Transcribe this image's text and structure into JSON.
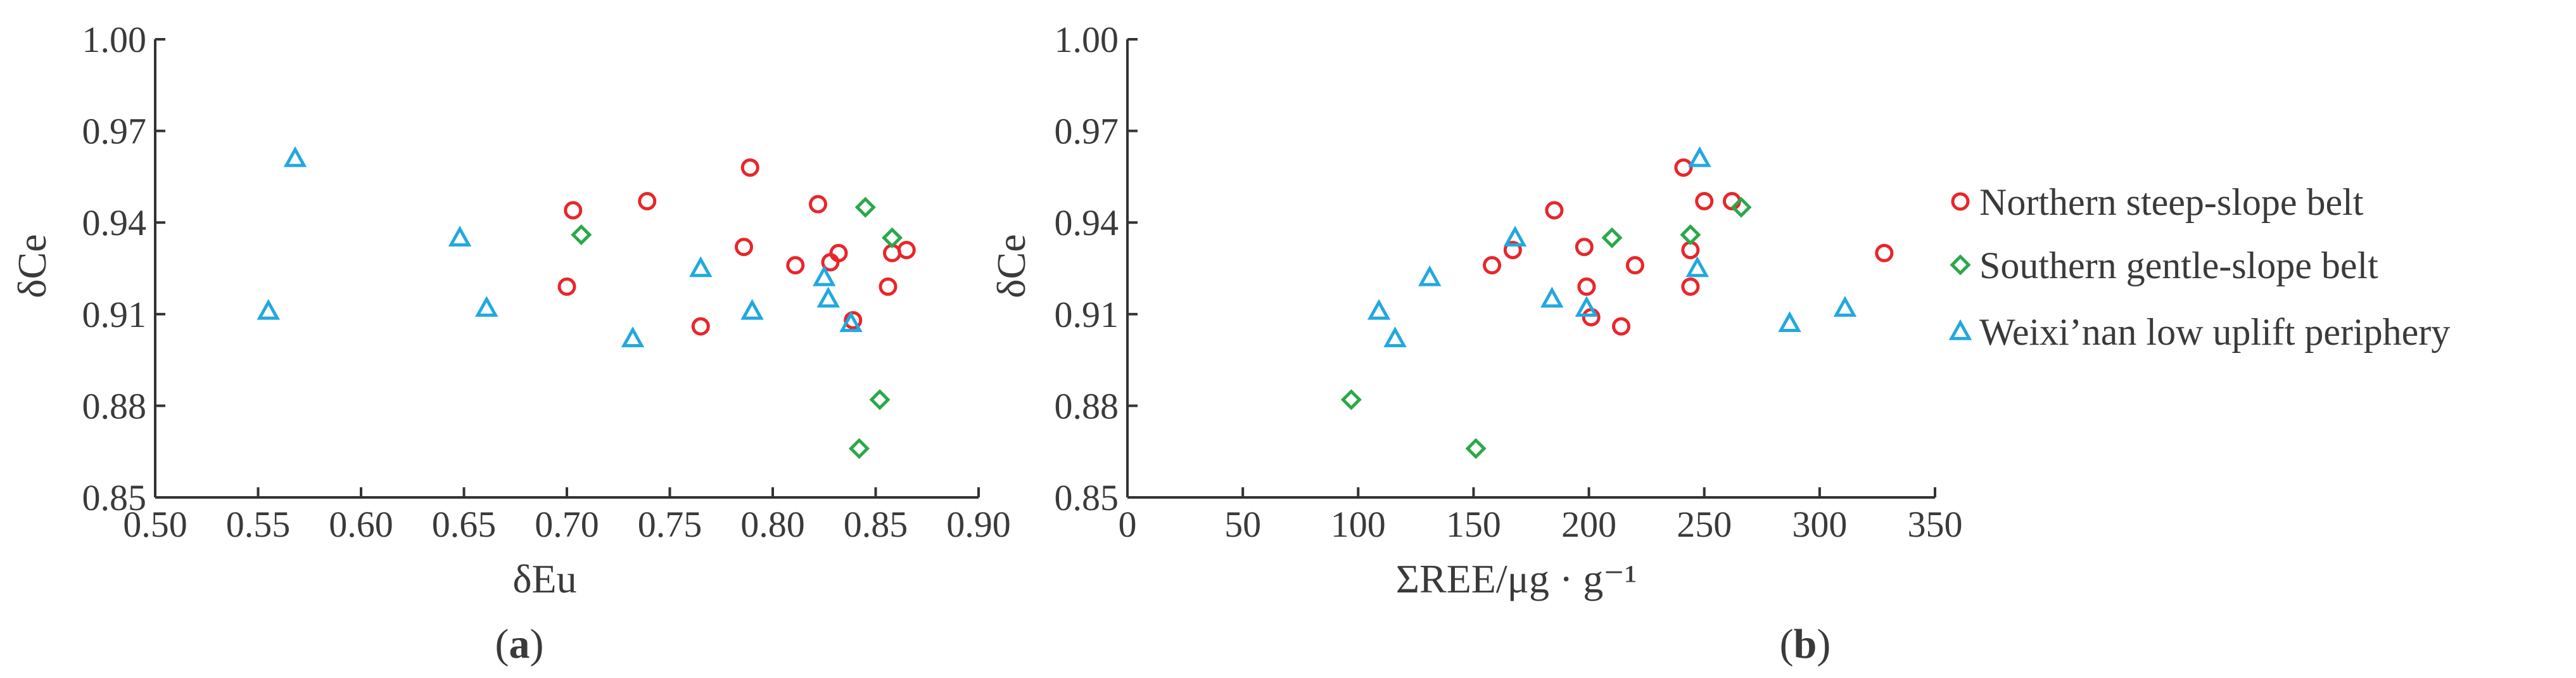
{
  "chart_data": [
    {
      "type": "scatter",
      "panel_label": {
        "open": "(",
        "letter": "a",
        "close": ")"
      },
      "xlabel": "δEu",
      "ylabel": "δCe",
      "xlim": [
        0.5,
        0.9
      ],
      "ylim": [
        0.85,
        1.0
      ],
      "xticks": [
        "0.50",
        "0.55",
        "0.60",
        "0.65",
        "0.70",
        "0.75",
        "0.80",
        "0.85",
        "0.90"
      ],
      "yticks": [
        "0.85",
        "0.88",
        "0.91",
        "0.94",
        "0.97",
        "1.00"
      ],
      "grid": false,
      "series": [
        {
          "name": "Northern steep-slope belt",
          "points": [
            [
              0.7,
              0.919
            ],
            [
              0.703,
              0.944
            ],
            [
              0.739,
              0.947
            ],
            [
              0.765,
              0.906
            ],
            [
              0.786,
              0.932
            ],
            [
              0.789,
              0.958
            ],
            [
              0.811,
              0.926
            ],
            [
              0.822,
              0.946
            ],
            [
              0.828,
              0.927
            ],
            [
              0.832,
              0.93
            ],
            [
              0.839,
              0.908
            ],
            [
              0.856,
              0.919
            ],
            [
              0.858,
              0.93
            ],
            [
              0.865,
              0.931
            ]
          ]
        },
        {
          "name": "Southern gentle-slope belt",
          "points": [
            [
              0.707,
              0.936
            ],
            [
              0.842,
              0.866
            ],
            [
              0.845,
              0.945
            ],
            [
              0.852,
              0.882
            ],
            [
              0.858,
              0.935
            ]
          ]
        },
        {
          "name": "Weixi’nan low uplift periphery",
          "points": [
            [
              0.555,
              0.911
            ],
            [
              0.568,
              0.961
            ],
            [
              0.648,
              0.935
            ],
            [
              0.661,
              0.912
            ],
            [
              0.732,
              0.902
            ],
            [
              0.765,
              0.925
            ],
            [
              0.79,
              0.911
            ],
            [
              0.825,
              0.922
            ],
            [
              0.827,
              0.915
            ],
            [
              0.838,
              0.907
            ]
          ]
        }
      ]
    },
    {
      "type": "scatter",
      "panel_label": {
        "open": "(",
        "letter": "b",
        "close": ")"
      },
      "xlabel": "ΣREE/μg · g⁻¹",
      "ylabel": "δCe",
      "xlim": [
        0,
        350
      ],
      "ylim": [
        0.85,
        1.0
      ],
      "xticks": [
        "0",
        "50",
        "100",
        "150",
        "200",
        "250",
        "300",
        "350"
      ],
      "yticks": [
        "0.85",
        "0.88",
        "0.91",
        "0.94",
        "0.97",
        "1.00"
      ],
      "grid": false,
      "series": [
        {
          "name": "Northern steep-slope belt",
          "points": [
            [
              158,
              0.926
            ],
            [
              167,
              0.931
            ],
            [
              185,
              0.944
            ],
            [
              198,
              0.932
            ],
            [
              199,
              0.919
            ],
            [
              201,
              0.909
            ],
            [
              214,
              0.906
            ],
            [
              220,
              0.926
            ],
            [
              241,
              0.958
            ],
            [
              244,
              0.931
            ],
            [
              244,
              0.919
            ],
            [
              250,
              0.947
            ],
            [
              262,
              0.947
            ],
            [
              328,
              0.93
            ]
          ]
        },
        {
          "name": "Southern gentle-slope belt",
          "points": [
            [
              97,
              0.882
            ],
            [
              151,
              0.866
            ],
            [
              210,
              0.935
            ],
            [
              244,
              0.936
            ],
            [
              266,
              0.945
            ]
          ]
        },
        {
          "name": "Weixi’nan low uplift periphery",
          "points": [
            [
              109,
              0.911
            ],
            [
              116,
              0.902
            ],
            [
              131,
              0.922
            ],
            [
              168,
              0.935
            ],
            [
              184,
              0.915
            ],
            [
              199,
              0.912
            ],
            [
              247,
              0.925
            ],
            [
              248,
              0.961
            ],
            [
              287,
              0.907
            ],
            [
              311,
              0.912
            ]
          ]
        }
      ]
    }
  ],
  "legend": {
    "placement": "right",
    "items": [
      {
        "label": "Northern steep-slope belt",
        "marker": "circle",
        "color": "#e8262b"
      },
      {
        "label": "Southern gentle-slope belt",
        "marker": "diamond",
        "color": "#2aa84a"
      },
      {
        "label": "Weixi’nan low uplift periphery",
        "marker": "triangle",
        "color": "#22a8e0"
      }
    ]
  }
}
